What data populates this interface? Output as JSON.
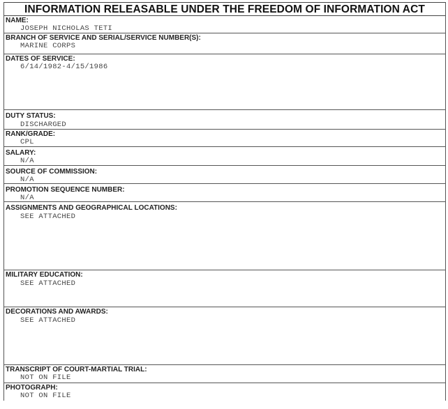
{
  "title": "INFORMATION RELEASABLE UNDER THE FREEDOM OF INFORMATION ACT",
  "fields": [
    {
      "label": "NAME:",
      "value": "JOSEPH NICHOLAS TETI"
    },
    {
      "label": "BRANCH OF SERVICE AND SERIAL/SERVICE NUMBER(S):",
      "value": "MARINE CORPS"
    },
    {
      "label": "DATES OF SERVICE:",
      "value": "6/14/1982-4/15/1986"
    },
    {
      "label": "DUTY STATUS:",
      "value": "DISCHARGED"
    },
    {
      "label": "RANK/GRADE:",
      "value": "CPL"
    },
    {
      "label": "SALARY:",
      "value": "N/A"
    },
    {
      "label": "SOURCE OF COMMISSION:",
      "value": "N/A"
    },
    {
      "label": "PROMOTION SEQUENCE NUMBER:",
      "value": "N/A"
    },
    {
      "label": "ASSIGNMENTS AND GEOGRAPHICAL LOCATIONS:",
      "value": "SEE ATTACHED"
    },
    {
      "label": "MILITARY EDUCATION:",
      "value": "SEE ATTACHED"
    },
    {
      "label": "DECORATIONS AND AWARDS:",
      "value": "SEE ATTACHED"
    },
    {
      "label": "TRANSCRIPT OF COURT-MARTIAL TRIAL:",
      "value": "NOT ON FILE"
    },
    {
      "label": "PHOTOGRAPH:",
      "value": "NOT ON FILE"
    }
  ]
}
